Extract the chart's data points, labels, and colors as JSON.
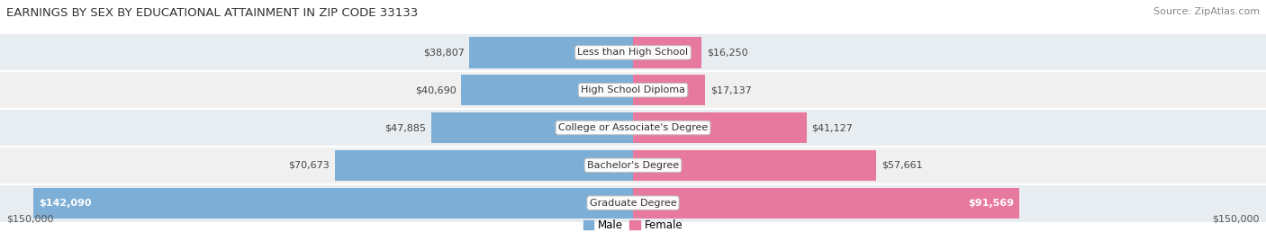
{
  "title": "EARNINGS BY SEX BY EDUCATIONAL ATTAINMENT IN ZIP CODE 33133",
  "source": "Source: ZipAtlas.com",
  "categories": [
    "Graduate Degree",
    "Bachelor's Degree",
    "College or Associate's Degree",
    "High School Diploma",
    "Less than High School"
  ],
  "male_values": [
    142090,
    70673,
    47885,
    40690,
    38807
  ],
  "female_values": [
    91569,
    57661,
    41127,
    17137,
    16250
  ],
  "male_labels": [
    "$142,090",
    "$70,673",
    "$47,885",
    "$40,690",
    "$38,807"
  ],
  "female_labels": [
    "$91,569",
    "$57,661",
    "$41,127",
    "$17,137",
    "$16,250"
  ],
  "male_color": "#7daed6",
  "female_color": "#e8799e",
  "row_bg_colors": [
    "#e8edf2",
    "#f0f0f0"
  ],
  "max_value": 150000,
  "xlabel_left": "$150,000",
  "xlabel_right": "$150,000",
  "title_fontsize": 9.5,
  "source_fontsize": 8,
  "label_fontsize": 8,
  "tick_fontsize": 8,
  "legend_fontsize": 8.5
}
